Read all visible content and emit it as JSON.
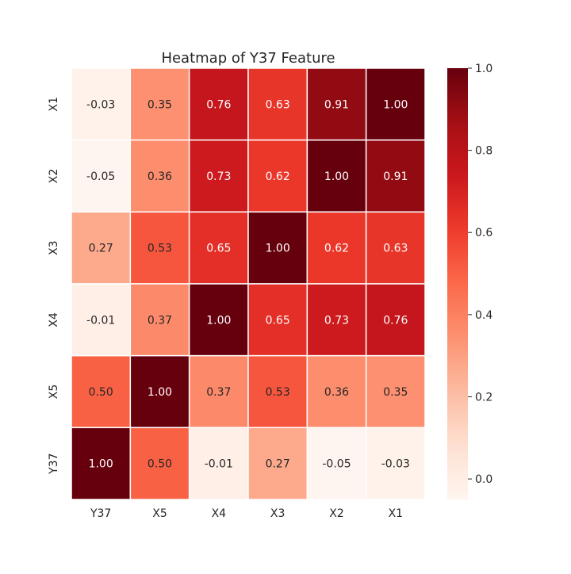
{
  "chart_data": {
    "type": "heatmap",
    "title": "Heatmap of Y37 Feature",
    "xlabel": "",
    "ylabel": "",
    "x_categories": [
      "Y37",
      "X5",
      "X4",
      "X3",
      "X2",
      "X1"
    ],
    "y_categories": [
      "X1",
      "X2",
      "X3",
      "X4",
      "X5",
      "Y37"
    ],
    "values": [
      [
        -0.03,
        0.35,
        0.76,
        0.63,
        0.91,
        1.0
      ],
      [
        -0.05,
        0.36,
        0.73,
        0.62,
        1.0,
        0.91
      ],
      [
        0.27,
        0.53,
        0.65,
        1.0,
        0.62,
        0.63
      ],
      [
        -0.01,
        0.37,
        1.0,
        0.65,
        0.73,
        0.76
      ],
      [
        0.5,
        1.0,
        0.37,
        0.53,
        0.36,
        0.35
      ],
      [
        1.0,
        0.5,
        -0.01,
        0.27,
        -0.05,
        -0.03
      ]
    ],
    "colormap": "Reds",
    "vmin": -0.05,
    "vmax": 1.0,
    "annotations_format": "0.00",
    "colorbar_ticks": [
      0.0,
      0.2,
      0.4,
      0.6,
      0.8,
      1.0
    ],
    "colorbar_tick_labels": [
      "0.0",
      "0.2",
      "0.4",
      "0.6",
      "0.8",
      "1.0"
    ],
    "grid": false,
    "cell_border_color": "#ffffff"
  }
}
